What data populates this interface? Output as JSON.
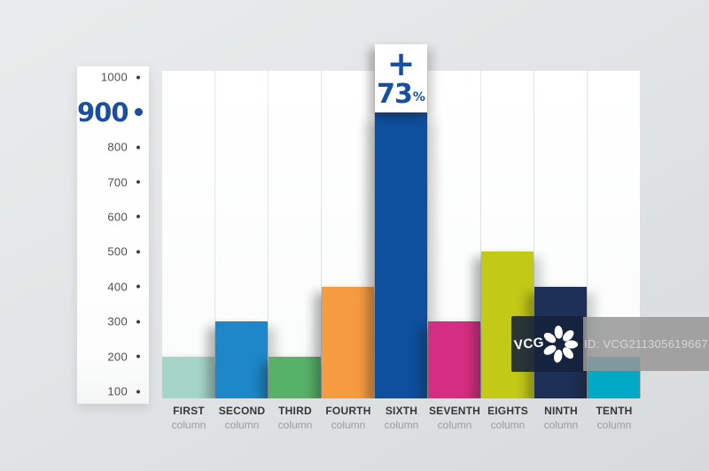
{
  "watermark": {
    "logo_text": "VCG",
    "id_label": "ID: VCG211305619667"
  },
  "chart_data": {
    "type": "bar",
    "title": "",
    "categories": [
      "FIRST",
      "SECOND",
      "THIRD",
      "FOURTH",
      "SIXTH",
      "SEVENTH",
      "EIGHTS",
      "NINTH",
      "TENTH"
    ],
    "category_sublabel": "column",
    "values": [
      200,
      300,
      200,
      400,
      900,
      300,
      500,
      400,
      200
    ],
    "bar_colors": [
      "#a5d4c8",
      "#1d87c9",
      "#57b269",
      "#f59b42",
      "#0e509e",
      "#d52d81",
      "#c3ca16",
      "#1e3055",
      "#00a9c6"
    ],
    "y_ticks": [
      1000,
      900,
      800,
      700,
      600,
      500,
      400,
      300,
      200,
      100
    ],
    "highlighted_tick": 900,
    "accent_color": "#1a4e9e",
    "ylim": [
      0,
      1050
    ],
    "grid": false,
    "legend": false,
    "annotation": {
      "prefix": "+",
      "value": "73",
      "suffix": "%",
      "column": "SIXTH"
    }
  }
}
